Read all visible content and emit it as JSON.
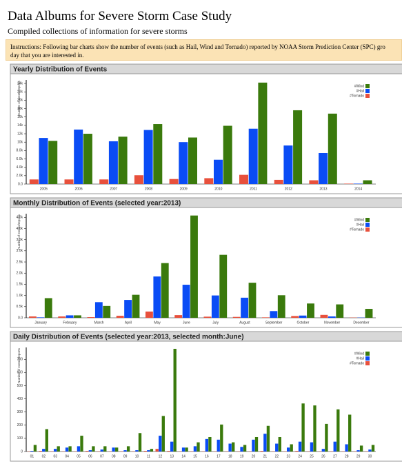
{
  "page": {
    "title": "Data Albums for Severe Storm Case Study",
    "subtitle": "Compiled collections of information for severe storms",
    "instructions": [
      "Instructions: Following bar charts show the number of events (such as Hail, Wind and Tornado) reported by NOAA Storm Prediction Center (SPC) gro",
      "day that you are interested in."
    ]
  },
  "chart_data": [
    {
      "type": "bar",
      "title": "Yearly Distribution of Events",
      "y_label": "Number of events/reports",
      "categories": [
        "2005",
        "2006",
        "2007",
        "2008",
        "2009",
        "2010",
        "2011",
        "2012",
        "2013",
        "2014"
      ],
      "series": [
        {
          "name": "#Wind",
          "color": "#3a7a0c",
          "values": [
            10300,
            12000,
            11300,
            14300,
            11100,
            13900,
            24200,
            17600,
            16800,
            900
          ]
        },
        {
          "name": "#Hail",
          "color": "#0a4cf5",
          "values": [
            11000,
            13000,
            10200,
            12900,
            10000,
            5800,
            13200,
            9200,
            7400,
            100
          ]
        },
        {
          "name": "#Tornado",
          "color": "#e8503c",
          "values": [
            1100,
            1100,
            1100,
            2100,
            1200,
            1400,
            2200,
            1000,
            900,
            100
          ]
        }
      ],
      "ylim": [
        0,
        24500
      ],
      "yticks": [
        {
          "value": 0,
          "label": "0.0"
        },
        {
          "value": 2000,
          "label": "2.0k"
        },
        {
          "value": 4000,
          "label": "4.0k"
        },
        {
          "value": 6000,
          "label": "6.0k"
        },
        {
          "value": 8000,
          "label": "8.0k"
        },
        {
          "value": 10000,
          "label": "10k"
        },
        {
          "value": 12000,
          "label": "12k"
        },
        {
          "value": 14000,
          "label": "14k"
        },
        {
          "value": 16000,
          "label": "16k"
        },
        {
          "value": 18000,
          "label": "18k"
        },
        {
          "value": 20000,
          "label": "20k"
        },
        {
          "value": 22000,
          "label": "22k"
        },
        {
          "value": 24000,
          "label": "24k"
        }
      ]
    },
    {
      "type": "bar",
      "title": "Monthly Distribution of Events (selected year:2013)",
      "y_label": "Number of events/reports",
      "categories": [
        "January",
        "February",
        "March",
        "April",
        "May",
        "June",
        "July",
        "August",
        "September",
        "October",
        "November",
        "December"
      ],
      "series": [
        {
          "name": "#Wind",
          "color": "#3a7a0c",
          "values": [
            880,
            110,
            530,
            1030,
            2450,
            4580,
            2820,
            1570,
            1010,
            640,
            600,
            400
          ]
        },
        {
          "name": "#Hail",
          "color": "#0a4cf5",
          "values": [
            20,
            110,
            700,
            800,
            1850,
            1480,
            1000,
            900,
            300,
            100,
            60,
            10
          ]
        },
        {
          "name": "#Tornado",
          "color": "#e8503c",
          "values": [
            60,
            60,
            30,
            90,
            280,
            120,
            50,
            40,
            20,
            80,
            130,
            10
          ]
        }
      ],
      "ylim": [
        0,
        4600
      ],
      "yticks": [
        {
          "value": 0,
          "label": "0.0"
        },
        {
          "value": 500,
          "label": "0.5k"
        },
        {
          "value": 1000,
          "label": "1.0k"
        },
        {
          "value": 1500,
          "label": "1.5k"
        },
        {
          "value": 2000,
          "label": "2.0k"
        },
        {
          "value": 2500,
          "label": "2.5k"
        },
        {
          "value": 3000,
          "label": "3.0k"
        },
        {
          "value": 3500,
          "label": "3.5k"
        },
        {
          "value": 4000,
          "label": "4.0k"
        },
        {
          "value": 4500,
          "label": "4.5k"
        }
      ]
    },
    {
      "type": "bar",
      "title": "Daily Distribution of Events (selected year:2013, selected month:June)",
      "y_label": "Number of events/reports",
      "categories": [
        "01",
        "02",
        "03",
        "04",
        "05",
        "06",
        "07",
        "08",
        "09",
        "10",
        "11",
        "12",
        "13",
        "14",
        "15",
        "16",
        "17",
        "18",
        "19",
        "20",
        "21",
        "22",
        "23",
        "24",
        "25",
        "26",
        "27",
        "28",
        "29",
        "30"
      ],
      "series": [
        {
          "name": "#Wind",
          "color": "#3a7a0c",
          "values": [
            50,
            170,
            40,
            40,
            120,
            40,
            40,
            30,
            40,
            140,
            20,
            270,
            780,
            30,
            70,
            110,
            205,
            70,
            50,
            110,
            195,
            110,
            55,
            365,
            350,
            210,
            320,
            280,
            45,
            50
          ]
        },
        {
          "name": "#Hail",
          "color": "#0a4cf5",
          "values": [
            5,
            20,
            20,
            30,
            40,
            10,
            15,
            30,
            10,
            10,
            10,
            120,
            75,
            30,
            40,
            95,
            90,
            60,
            35,
            90,
            135,
            60,
            30,
            75,
            70,
            20,
            75,
            55,
            10,
            15
          ]
        },
        {
          "name": "#Tornado",
          "color": "#e8503c",
          "values": [
            2,
            5,
            2,
            2,
            2,
            5,
            2,
            2,
            2,
            2,
            5,
            20,
            5,
            2,
            2,
            2,
            2,
            2,
            2,
            2,
            5,
            2,
            2,
            5,
            2,
            2,
            2,
            2,
            2,
            2
          ]
        }
      ],
      "ylim": [
        0,
        780
      ],
      "yticks": [
        0,
        100,
        200,
        300,
        400,
        500,
        600,
        700
      ]
    }
  ]
}
